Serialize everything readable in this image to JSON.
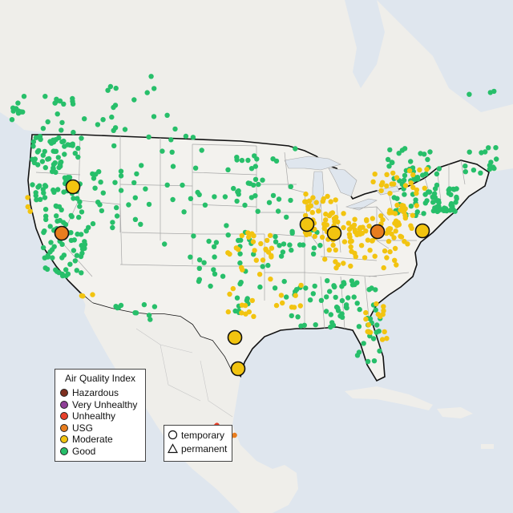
{
  "legend": {
    "title": "Air Quality Index",
    "items": [
      {
        "label": "Hazardous",
        "color": "#7e2f1f"
      },
      {
        "label": "Very Unhealthy",
        "color": "#8f3f97"
      },
      {
        "label": "Unhealthy",
        "color": "#e8412b"
      },
      {
        "label": "USG",
        "color": "#e87d1e"
      },
      {
        "label": "Moderate",
        "color": "#f2c410"
      },
      {
        "label": "Good",
        "color": "#27bf6a"
      }
    ]
  },
  "type_legend": {
    "items": [
      {
        "label": "temporary",
        "shape": "circle-icon"
      },
      {
        "label": "permanent",
        "shape": "triangle-icon"
      }
    ]
  },
  "colors": {
    "water": "#dfe6ee",
    "land": "#efeeea",
    "us_land": "#f3f2ee",
    "border": "#111111",
    "state_lines": "#a7a7a7"
  },
  "large_markers": [
    {
      "aqi": "Moderate",
      "location": "Idaho"
    },
    {
      "aqi": "USG",
      "location": "Northern California"
    },
    {
      "aqi": "Moderate",
      "location": "Chicago"
    },
    {
      "aqi": "Moderate",
      "location": "Indiana"
    },
    {
      "aqi": "USG",
      "location": "Pittsburgh"
    },
    {
      "aqi": "Moderate",
      "location": "Philadelphia"
    },
    {
      "aqi": "Moderate",
      "location": "San Antonio"
    },
    {
      "aqi": "Moderate",
      "location": "South Texas"
    }
  ]
}
